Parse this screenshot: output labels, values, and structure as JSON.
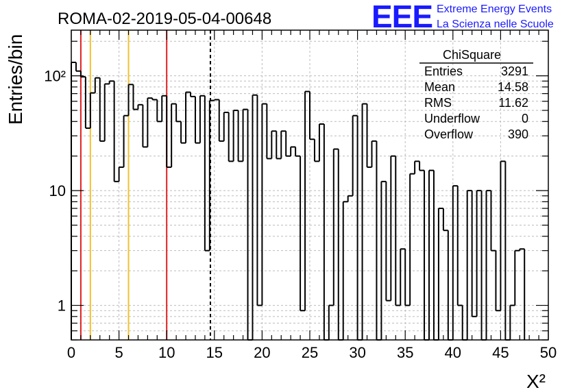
{
  "title": "ROMA-02-2019-05-04-00648",
  "logo": {
    "text": "EEE",
    "line1": "Extreme Energy Events",
    "line2": "La Scienza nelle Scuole",
    "color": "#1a1aff"
  },
  "stats": {
    "name": "ChiSquare",
    "rows": [
      {
        "label": "Entries",
        "value": "3291"
      },
      {
        "label": "Mean",
        "value": "14.58"
      },
      {
        "label": "RMS",
        "value": "11.62"
      },
      {
        "label": "Underflow",
        "value": "0"
      },
      {
        "label": "Overflow",
        "value": "390"
      }
    ]
  },
  "chart_data": {
    "type": "bar",
    "style": "step-histogram",
    "xlabel": "X²",
    "ylabel": "Entries/bin",
    "xlim": [
      0,
      50
    ],
    "ylim": [
      0.5,
      250
    ],
    "y_scale": "log",
    "bin_width": 0.5,
    "x_ticks": [
      "0",
      "5",
      "10",
      "15",
      "20",
      "25",
      "30",
      "35",
      "40",
      "45",
      "50"
    ],
    "y_ticks": [
      {
        "value": 1,
        "label": "1"
      },
      {
        "value": 10,
        "label": "10"
      },
      {
        "value": 100,
        "label": "10²"
      }
    ],
    "grid": true,
    "values": [
      131,
      110,
      98,
      35,
      71,
      96,
      27,
      85,
      90,
      12,
      16,
      45,
      84,
      51,
      56,
      24,
      64,
      62,
      40,
      67,
      16,
      57,
      40,
      26,
      72,
      66,
      26,
      67,
      3,
      61,
      62,
      27,
      48,
      18,
      50,
      18,
      51,
      0,
      68,
      1,
      57,
      19,
      33,
      19,
      33,
      20,
      24,
      20,
      0.9,
      73,
      28,
      18,
      38,
      0,
      1,
      23,
      0,
      8,
      9,
      45,
      0,
      57,
      16,
      27,
      0,
      12,
      1.1,
      20,
      1,
      3.1,
      1.0,
      14,
      18,
      15,
      0,
      15,
      0,
      7,
      4.5,
      0,
      11,
      1,
      0,
      10,
      0.8,
      10,
      0.5,
      10,
      3,
      0.9,
      18,
      0.5,
      1,
      3,
      3.1
    ],
    "vlines": [
      {
        "x": 1,
        "color": "#e02020",
        "style": "solid"
      },
      {
        "x": 2,
        "color": "#f2c12e",
        "style": "solid"
      },
      {
        "x": 6,
        "color": "#f2c12e",
        "style": "solid"
      },
      {
        "x": 10,
        "color": "#e02020",
        "style": "solid"
      },
      {
        "x": 14.58,
        "color": "#000000",
        "style": "dashed"
      }
    ]
  }
}
